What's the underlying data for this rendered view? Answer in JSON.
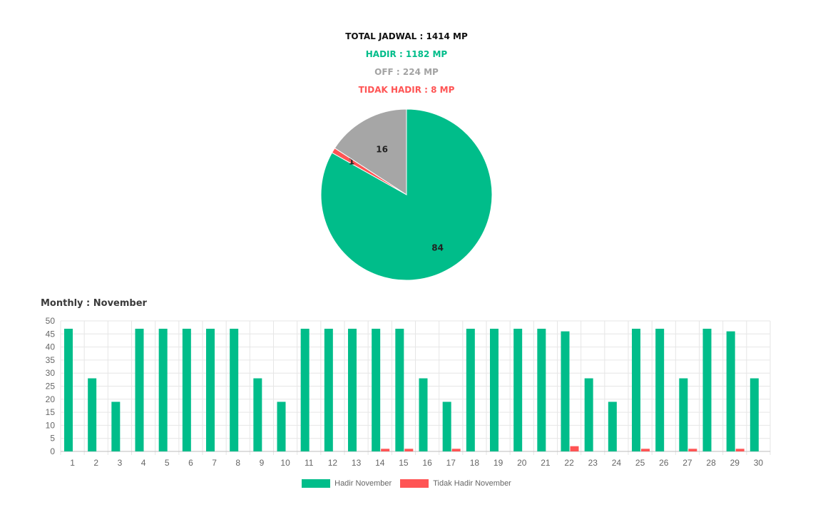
{
  "summary": {
    "total": "TOTAL JADWAL : 1414 MP",
    "hadir": "HADIR : 1182 MP",
    "off": "OFF : 224 MP",
    "tidak_hadir": "TIDAK HADIR : 8 MP"
  },
  "colors": {
    "hadir": "#00bd8a",
    "off": "#a6a6a6",
    "tidak_hadir": "#ff5454",
    "grid": "#e6e6e6",
    "tick_text": "#666666"
  },
  "monthly_title": "Monthly : November",
  "chart_data": [
    {
      "type": "pie",
      "slices": [
        {
          "label": "Hadir",
          "value": 84,
          "color": "#00bd8a"
        },
        {
          "label": "Tidak Hadir",
          "value": 1,
          "color": "#ff5454"
        },
        {
          "label": "Off",
          "value": 16,
          "color": "#a6a6a6"
        }
      ]
    },
    {
      "type": "bar",
      "title": "Monthly : November",
      "categories": [
        "1",
        "2",
        "3",
        "4",
        "5",
        "6",
        "7",
        "8",
        "9",
        "10",
        "11",
        "12",
        "13",
        "14",
        "15",
        "16",
        "17",
        "18",
        "19",
        "20",
        "21",
        "22",
        "23",
        "24",
        "25",
        "26",
        "27",
        "28",
        "29",
        "30"
      ],
      "series": [
        {
          "name": "Hadir November",
          "color": "#00bd8a",
          "values": [
            47,
            28,
            19,
            47,
            47,
            47,
            47,
            47,
            28,
            19,
            47,
            47,
            47,
            47,
            47,
            28,
            19,
            47,
            47,
            47,
            47,
            46,
            28,
            19,
            47,
            47,
            28,
            47,
            46,
            28
          ]
        },
        {
          "name": "Tidak Hadir November",
          "color": "#ff5454",
          "values": [
            0,
            0,
            0,
            0,
            0,
            0,
            0,
            0,
            0,
            0,
            0,
            0,
            0,
            1,
            1,
            0,
            1,
            0,
            0,
            0,
            0,
            2,
            0,
            0,
            1,
            0,
            1,
            0,
            1,
            0
          ]
        }
      ],
      "ylim": [
        0,
        50
      ],
      "yticks": [
        0,
        5,
        10,
        15,
        20,
        25,
        30,
        35,
        40,
        45,
        50
      ],
      "grid": true,
      "legend": "bottom-center"
    }
  ]
}
